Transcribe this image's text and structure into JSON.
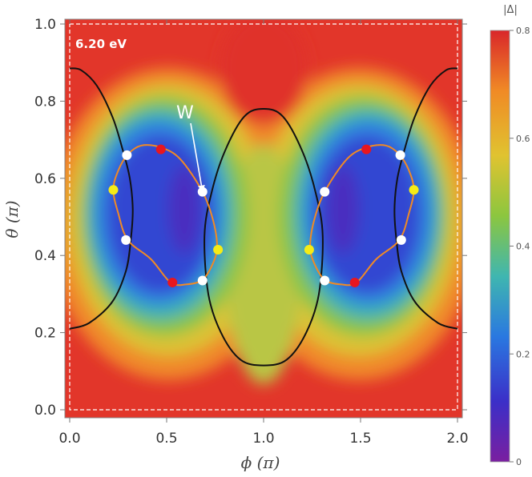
{
  "chart_data": {
    "type": "heatmap",
    "title": "",
    "energy_label": "6.20 eV",
    "xlabel_symbol": "ϕ",
    "xlabel_unit": " (π)",
    "ylabel_symbol": "θ",
    "ylabel_unit": " (π)",
    "xlim": [
      0.0,
      2.0
    ],
    "ylim": [
      0.0,
      1.0
    ],
    "x_ticks": [
      0.0,
      0.5,
      1.0,
      1.5,
      2.0
    ],
    "x_tick_labels": [
      "0.0",
      "0.5",
      "1.0",
      "1.5",
      "2.0"
    ],
    "y_ticks": [
      0.0,
      0.2,
      0.4,
      0.6,
      0.8,
      1.0
    ],
    "y_tick_labels": [
      "0.0",
      "0.2",
      "0.4",
      "0.6",
      "0.8",
      "1.0"
    ],
    "colorbar": {
      "title": "|Δ|",
      "range": [
        0,
        0.8
      ],
      "ticks": [
        0,
        0.2,
        0.4,
        0.6,
        0.8
      ],
      "tick_labels": [
        "0",
        "0.2",
        "0.4",
        "0.6",
        "0.8"
      ],
      "colors": [
        "#7a1fa0",
        "#3b2fc8",
        "#2a78e0",
        "#3fb6b0",
        "#8cc63f",
        "#e0c330",
        "#f08a25",
        "#d9262a"
      ]
    },
    "annotation": {
      "text": "W",
      "target": [
        0.685,
        0.565
      ]
    },
    "black_curves": [
      {
        "name": "central-loop",
        "closed": true,
        "points": [
          [
            1.0,
            0.78
          ],
          [
            0.9,
            0.76
          ],
          [
            0.8,
            0.67
          ],
          [
            0.73,
            0.56
          ],
          [
            0.695,
            0.45
          ],
          [
            0.715,
            0.3
          ],
          [
            0.78,
            0.2
          ],
          [
            0.88,
            0.13
          ],
          [
            1.0,
            0.115
          ],
          [
            1.12,
            0.13
          ],
          [
            1.22,
            0.2
          ],
          [
            1.285,
            0.3
          ],
          [
            1.305,
            0.45
          ],
          [
            1.27,
            0.56
          ],
          [
            1.2,
            0.67
          ],
          [
            1.1,
            0.76
          ]
        ]
      },
      {
        "name": "left-upper-arc",
        "closed": false,
        "points": [
          [
            0.0,
            0.885
          ],
          [
            0.06,
            0.88
          ],
          [
            0.14,
            0.84
          ],
          [
            0.22,
            0.76
          ],
          [
            0.27,
            0.68
          ],
          [
            0.31,
            0.6
          ],
          [
            0.325,
            0.52
          ],
          [
            0.315,
            0.44
          ],
          [
            0.29,
            0.36
          ],
          [
            0.22,
            0.28
          ],
          [
            0.1,
            0.225
          ],
          [
            0.0,
            0.21
          ]
        ]
      },
      {
        "name": "right-upper-arc",
        "closed": false,
        "points": [
          [
            2.0,
            0.885
          ],
          [
            1.94,
            0.88
          ],
          [
            1.86,
            0.84
          ],
          [
            1.78,
            0.76
          ],
          [
            1.73,
            0.68
          ],
          [
            1.69,
            0.6
          ],
          [
            1.675,
            0.52
          ],
          [
            1.685,
            0.44
          ],
          [
            1.71,
            0.36
          ],
          [
            1.78,
            0.28
          ],
          [
            1.9,
            0.225
          ],
          [
            2.0,
            0.21
          ]
        ]
      }
    ],
    "orange_curves": [
      {
        "name": "left-loop",
        "closed": true,
        "points": [
          [
            0.3,
            0.662
          ],
          [
            0.37,
            0.685
          ],
          [
            0.47,
            0.68
          ],
          [
            0.57,
            0.65
          ],
          [
            0.685,
            0.565
          ],
          [
            0.74,
            0.49
          ],
          [
            0.76,
            0.42
          ],
          [
            0.73,
            0.37
          ],
          [
            0.68,
            0.335
          ],
          [
            0.6,
            0.325
          ],
          [
            0.52,
            0.33
          ],
          [
            0.42,
            0.39
          ],
          [
            0.3,
            0.44
          ],
          [
            0.25,
            0.51
          ],
          [
            0.225,
            0.57
          ],
          [
            0.25,
            0.62
          ]
        ]
      },
      {
        "name": "right-loop",
        "closed": true,
        "points": [
          [
            1.7,
            0.662
          ],
          [
            1.63,
            0.685
          ],
          [
            1.53,
            0.68
          ],
          [
            1.43,
            0.65
          ],
          [
            1.315,
            0.565
          ],
          [
            1.26,
            0.49
          ],
          [
            1.24,
            0.42
          ],
          [
            1.27,
            0.37
          ],
          [
            1.32,
            0.335
          ],
          [
            1.4,
            0.325
          ],
          [
            1.48,
            0.33
          ],
          [
            1.58,
            0.39
          ],
          [
            1.7,
            0.44
          ],
          [
            1.75,
            0.51
          ],
          [
            1.775,
            0.57
          ],
          [
            1.75,
            0.62
          ]
        ]
      }
    ],
    "white_points": [
      [
        0.295,
        0.66
      ],
      [
        0.29,
        0.44
      ],
      [
        0.685,
        0.565
      ],
      [
        0.685,
        0.335
      ],
      [
        1.315,
        0.565
      ],
      [
        1.315,
        0.335
      ],
      [
        1.705,
        0.66
      ],
      [
        1.71,
        0.44
      ]
    ],
    "red_points": [
      [
        0.47,
        0.675
      ],
      [
        0.53,
        0.33
      ],
      [
        1.53,
        0.675
      ],
      [
        1.47,
        0.33
      ]
    ],
    "yellow_points": [
      [
        0.225,
        0.57
      ],
      [
        0.765,
        0.415
      ],
      [
        1.235,
        0.415
      ],
      [
        1.775,
        0.57
      ]
    ]
  }
}
